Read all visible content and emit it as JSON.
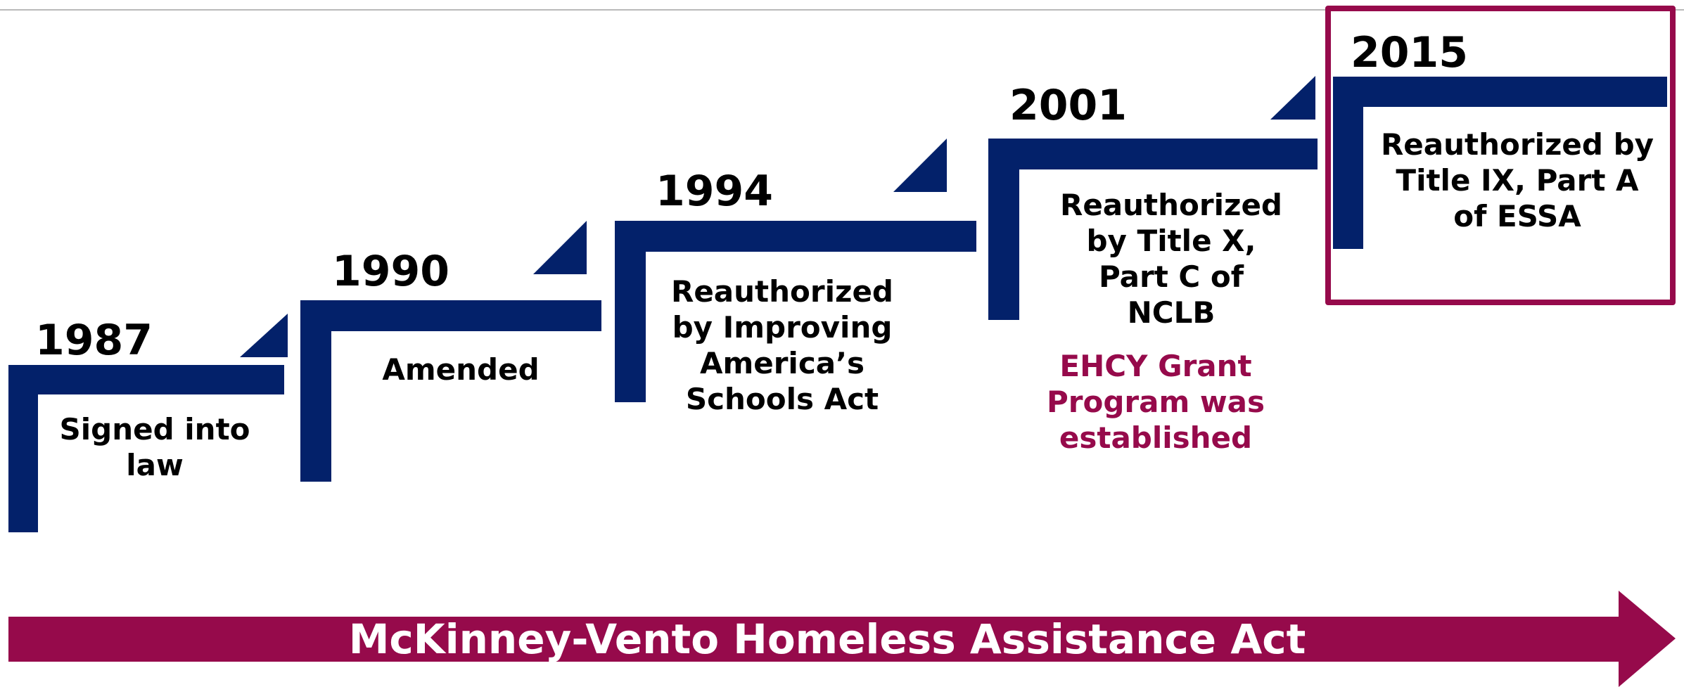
{
  "colors": {
    "step": "#03216a",
    "accent": "#960a4b",
    "text": "#000000"
  },
  "steps": [
    {
      "year": "1987",
      "lines": [
        "Signed into",
        "law"
      ]
    },
    {
      "year": "1990",
      "lines": [
        "Amended"
      ]
    },
    {
      "year": "1994",
      "lines": [
        "Reauthorized",
        "by Improving",
        "America’s",
        "Schools Act"
      ]
    },
    {
      "year": "2001",
      "lines": [
        "Reauthorized",
        "by Title X,",
        "Part C of",
        "NCLB"
      ],
      "note_lines": [
        "EHCY Grant",
        "Program was",
        "established"
      ]
    },
    {
      "year": "2015",
      "lines": [
        "Reauthorized by",
        "Title IX, Part A",
        "of ESSA"
      ]
    }
  ],
  "banner": {
    "label": "McKinney-Vento Homeless Assistance Act"
  }
}
